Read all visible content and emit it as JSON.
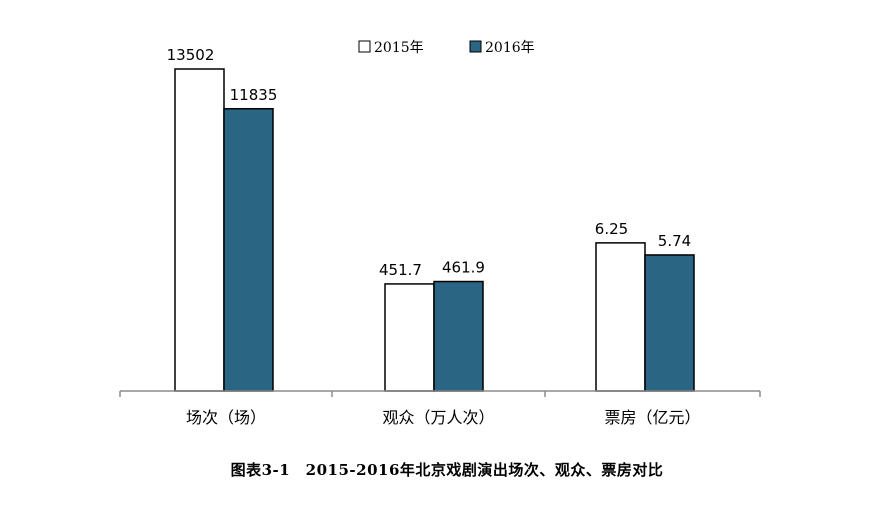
{
  "chart_data": {
    "type": "bar",
    "categories": [
      "场次（场）",
      "观众（万人次）",
      "票房（亿元）"
    ],
    "series": [
      {
        "name": "2015年",
        "values": [
          13502,
          451.7,
          6.25
        ],
        "labels": [
          "13502",
          "451.7",
          "6.25"
        ]
      },
      {
        "name": "2016年",
        "values": [
          11835,
          461.9,
          5.74
        ],
        "labels": [
          "11835",
          "461.9",
          "5.74"
        ]
      }
    ],
    "title": "",
    "xlabel": "",
    "ylabel": "",
    "legend": "top-center",
    "grid": false,
    "note": "每一组采用各自的纵向比例（不同单位）"
  },
  "caption": "图表3-1　2015-2016年北京戏剧演出场次、观众、票房对比",
  "colors": {
    "series_2015": "#ffffff",
    "series_2016": "#2a6584",
    "outline": "#000000",
    "axis": "#8c8c8c"
  }
}
